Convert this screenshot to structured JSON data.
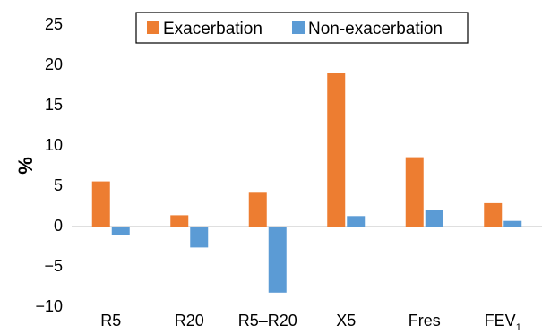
{
  "chart_data": {
    "type": "bar",
    "title": "",
    "xlabel": "",
    "ylabel": "%",
    "ylim": [
      -10,
      25
    ],
    "yticks": [
      -10,
      -5,
      0,
      5,
      10,
      15,
      20,
      25
    ],
    "ytick_labels": [
      "−10",
      "−5",
      "0",
      "5",
      "10",
      "15",
      "20",
      "25"
    ],
    "grid": false,
    "legend_position": "top-center",
    "categories": [
      "R5",
      "R20",
      "R5–R20",
      "X5",
      "Fres",
      "FEV1"
    ],
    "category_labels": [
      {
        "main": "R5",
        "sub": ""
      },
      {
        "main": "R20",
        "sub": ""
      },
      {
        "main": "R5–R20",
        "sub": ""
      },
      {
        "main": "X5",
        "sub": ""
      },
      {
        "main": "Fres",
        "sub": ""
      },
      {
        "main": "FEV",
        "sub": "1"
      }
    ],
    "series": [
      {
        "name": "Exacerbation",
        "color": "#ED7D31",
        "values": [
          5.6,
          1.4,
          4.3,
          19.0,
          8.6,
          2.9
        ]
      },
      {
        "name": "Non-exacerbation",
        "color": "#5B9BD5",
        "values": [
          -1.0,
          -2.6,
          -8.2,
          1.3,
          2.0,
          0.7
        ]
      }
    ]
  }
}
